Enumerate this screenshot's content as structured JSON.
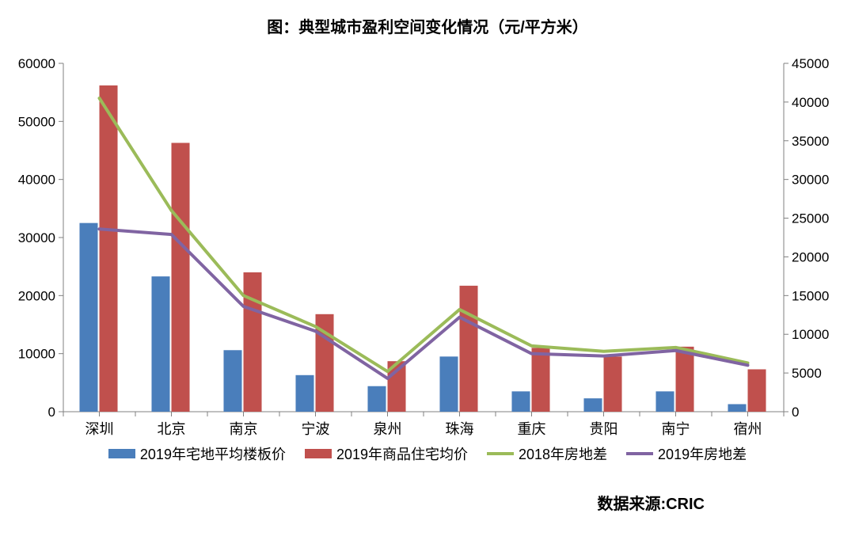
{
  "title": "图：典型城市盈利空间变化情况（元/平方米）",
  "title_fontsize": 20,
  "source": "数据来源:CRIC",
  "chart": {
    "type": "bar+line-dual-axis",
    "categories": [
      "深圳",
      "北京",
      "南京",
      "宁波",
      "泉州",
      "珠海",
      "重庆",
      "贵阳",
      "南宁",
      "宿州"
    ],
    "left_axis": {
      "min": 0,
      "max": 60000,
      "step": 10000
    },
    "right_axis": {
      "min": 0,
      "max": 45000,
      "step": 5000
    },
    "bars": [
      {
        "name": "2019年宅地平均楼板价",
        "color": "#4a7ebb",
        "axis": "left",
        "values": [
          32500,
          23300,
          10600,
          6300,
          4400,
          9500,
          3500,
          2300,
          3500,
          1300
        ]
      },
      {
        "name": "2019年商品住宅均价",
        "color": "#c0504d",
        "axis": "left",
        "values": [
          56200,
          46300,
          24000,
          16800,
          8700,
          21700,
          11000,
          9500,
          11200,
          7300
        ]
      }
    ],
    "lines": [
      {
        "name": "2018年房地差",
        "color": "#9bbb59",
        "axis": "right",
        "width": 4,
        "values": [
          40500,
          26000,
          15000,
          11000,
          5200,
          13200,
          8500,
          7800,
          8300,
          6300
        ]
      },
      {
        "name": "2019年房地差",
        "color": "#8064a2",
        "axis": "right",
        "width": 4,
        "values": [
          23600,
          22900,
          13600,
          10400,
          4300,
          12200,
          7500,
          7200,
          7900,
          6000
        ]
      }
    ],
    "bar_group_width": 0.55,
    "axis_line_color": "#808080",
    "tick_fontsize": 17,
    "category_fontsize": 18,
    "background": "#ffffff"
  },
  "legend_labels": {
    "bar1": "2019年宅地平均楼板价",
    "bar2": "2019年商品住宅均价",
    "line1": "2018年房地差",
    "line2": "2019年房地差"
  }
}
